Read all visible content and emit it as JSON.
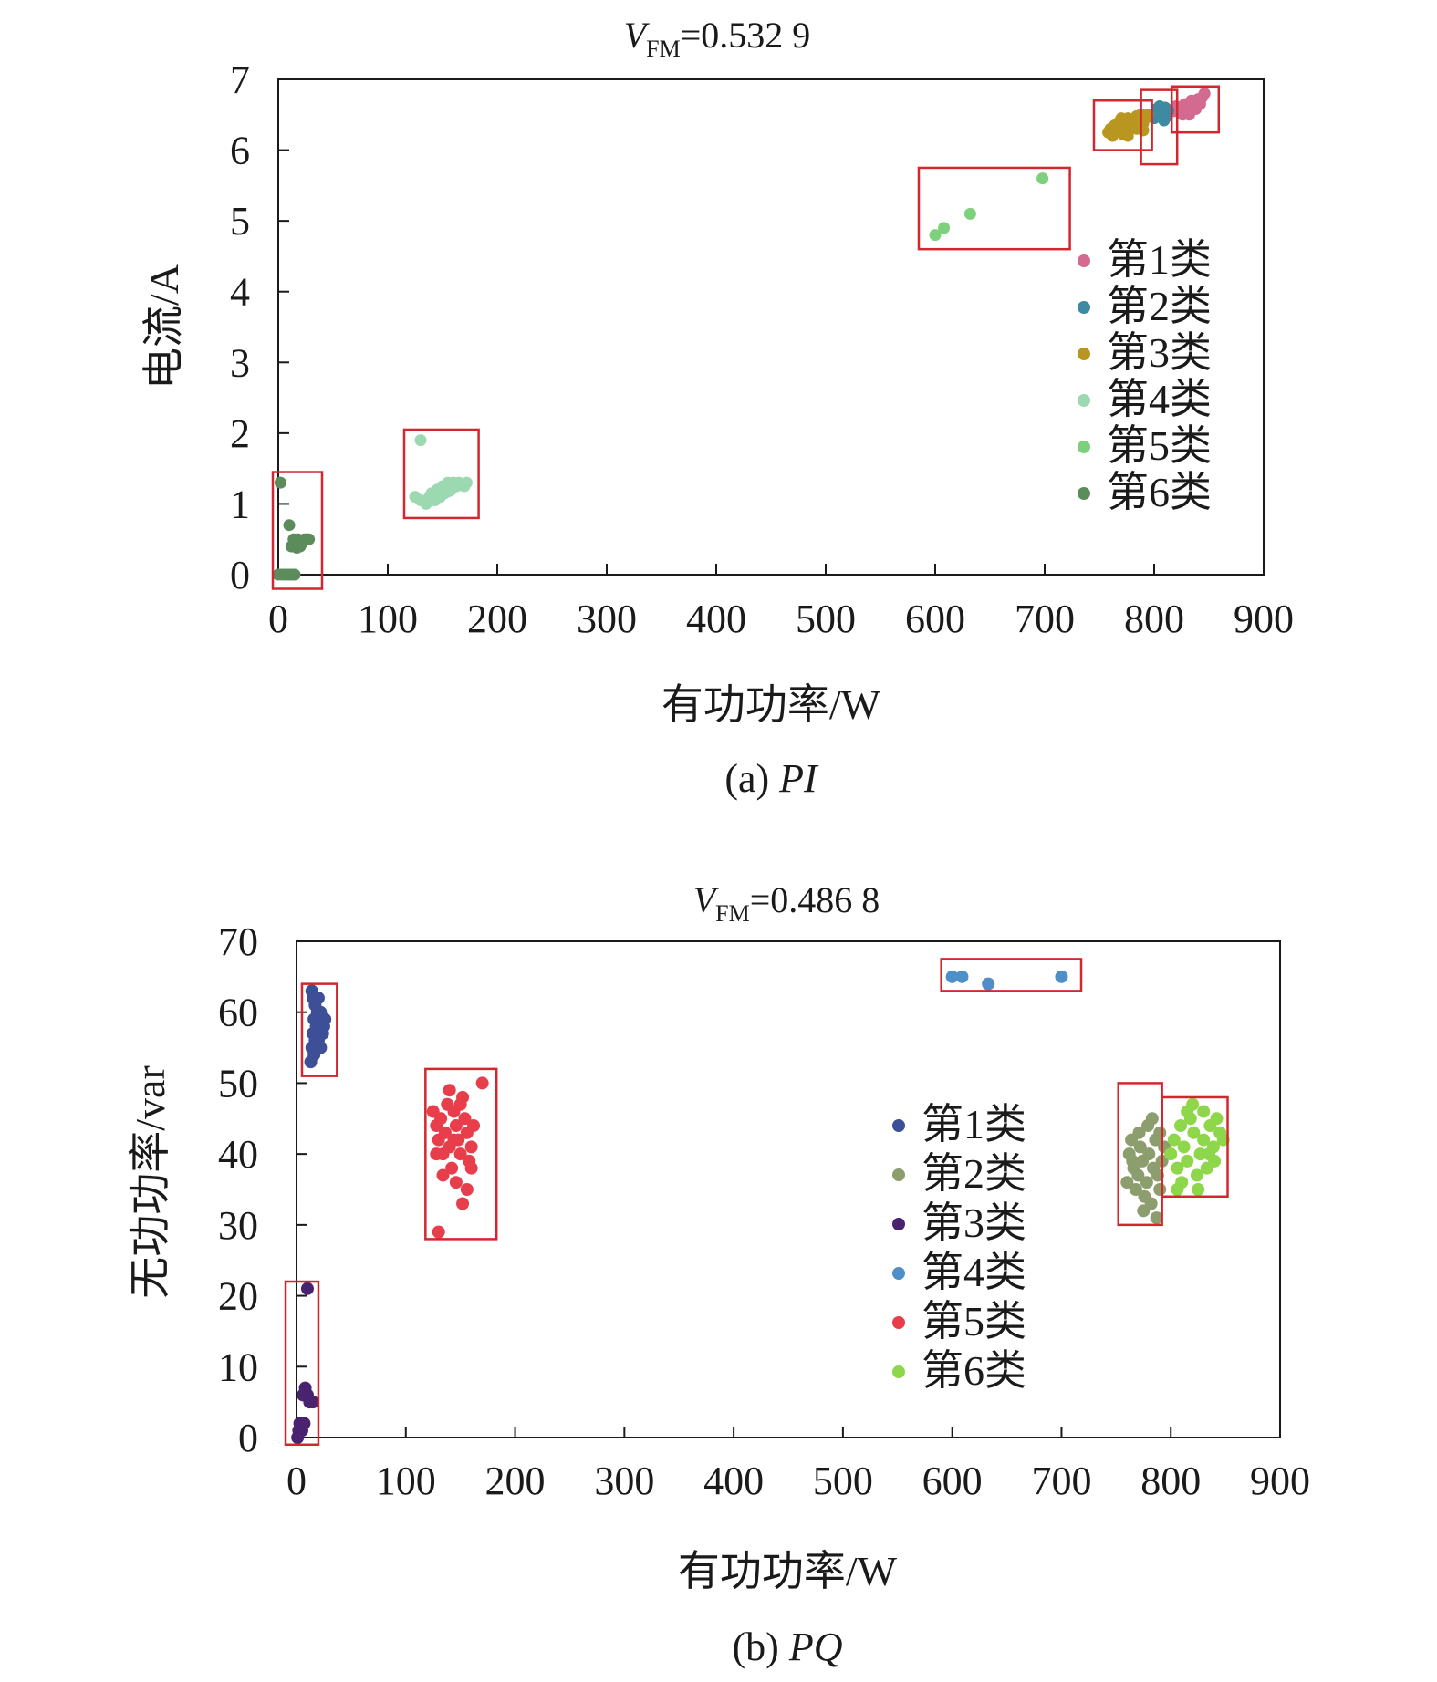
{
  "chart_data": [
    {
      "type": "scatter",
      "title_prefix": "V",
      "title_sub": "FM",
      "title_value": "=0.532 9",
      "xlabel": "有功功率/W",
      "ylabel": "电流/A",
      "caption_prefix": "(a) ",
      "caption_italic": "PI",
      "xlim": [
        0,
        900
      ],
      "ylim": [
        0,
        7
      ],
      "xticks": [
        "0",
        "100",
        "200",
        "300",
        "400",
        "500",
        "600",
        "700",
        "800",
        "900"
      ],
      "yticks": [
        "0",
        "1",
        "2",
        "3",
        "4",
        "5",
        "6",
        "7"
      ],
      "legend_position": "right-middle",
      "series": [
        {
          "name": "第1类",
          "color": "#d36a8f",
          "points": [
            [
              818,
              6.55
            ],
            [
              822,
              6.6
            ],
            [
              826,
              6.58
            ],
            [
              828,
              6.65
            ],
            [
              830,
              6.55
            ],
            [
              832,
              6.62
            ],
            [
              834,
              6.7
            ],
            [
              836,
              6.6
            ],
            [
              838,
              6.68
            ],
            [
              840,
              6.72
            ],
            [
              842,
              6.65
            ],
            [
              844,
              6.75
            ],
            [
              846,
              6.8
            ],
            [
              826,
              6.5
            ],
            [
              832,
              6.5
            ],
            [
              838,
              6.58
            ],
            [
              820,
              6.62
            ],
            [
              842,
              6.7
            ]
          ]
        },
        {
          "name": "第2类",
          "color": "#3e8aa3",
          "points": [
            [
              800,
              6.45
            ],
            [
              803,
              6.5
            ],
            [
              806,
              6.55
            ],
            [
              808,
              6.48
            ],
            [
              810,
              6.6
            ],
            [
              812,
              6.52
            ],
            [
              805,
              6.62
            ],
            [
              809,
              6.42
            ],
            [
              813,
              6.56
            ],
            [
              802,
              6.58
            ],
            [
              811,
              6.47
            ],
            [
              807,
              6.53
            ]
          ]
        },
        {
          "name": "第3类",
          "color": "#b8961f",
          "points": [
            [
              758,
              6.25
            ],
            [
              760,
              6.3
            ],
            [
              762,
              6.2
            ],
            [
              764,
              6.35
            ],
            [
              766,
              6.28
            ],
            [
              768,
              6.4
            ],
            [
              770,
              6.3
            ],
            [
              772,
              6.22
            ],
            [
              774,
              6.38
            ],
            [
              776,
              6.45
            ],
            [
              778,
              6.3
            ],
            [
              780,
              6.4
            ],
            [
              782,
              6.35
            ],
            [
              784,
              6.48
            ],
            [
              786,
              6.42
            ],
            [
              788,
              6.5
            ],
            [
              790,
              6.38
            ],
            [
              792,
              6.45
            ],
            [
              794,
              6.5
            ],
            [
              776,
              6.2
            ],
            [
              784,
              6.3
            ],
            [
              770,
              6.45
            ],
            [
              790,
              6.28
            ]
          ]
        },
        {
          "name": "第4类",
          "color": "#9cd9b0",
          "points": [
            [
              130,
              1.9
            ],
            [
              125,
              1.1
            ],
            [
              130,
              1.05
            ],
            [
              135,
              1.0
            ],
            [
              138,
              1.1
            ],
            [
              140,
              1.15
            ],
            [
              143,
              1.05
            ],
            [
              145,
              1.2
            ],
            [
              148,
              1.1
            ],
            [
              150,
              1.25
            ],
            [
              152,
              1.15
            ],
            [
              155,
              1.3
            ],
            [
              158,
              1.2
            ],
            [
              160,
              1.3
            ],
            [
              163,
              1.25
            ],
            [
              165,
              1.3
            ],
            [
              170,
              1.25
            ],
            [
              172,
              1.3
            ],
            [
              142,
              1.08
            ],
            [
              156,
              1.18
            ]
          ]
        },
        {
          "name": "第5类",
          "color": "#7dd17d",
          "points": [
            [
              600,
              4.8
            ],
            [
              608,
              4.9
            ],
            [
              632,
              5.1
            ],
            [
              698,
              5.6
            ]
          ]
        },
        {
          "name": "第6类",
          "color": "#5c8c5c",
          "points": [
            [
              2,
              1.3
            ],
            [
              0,
              0
            ],
            [
              3,
              0
            ],
            [
              5,
              0
            ],
            [
              7,
              0
            ],
            [
              9,
              0
            ],
            [
              11,
              0
            ],
            [
              13,
              0
            ],
            [
              15,
              0
            ],
            [
              10,
              0.7
            ],
            [
              12,
              0.4
            ],
            [
              14,
              0.5
            ],
            [
              16,
              0.45
            ],
            [
              18,
              0.5
            ],
            [
              20,
              0.4
            ],
            [
              22,
              0.45
            ],
            [
              24,
              0.5
            ],
            [
              26,
              0.5
            ],
            [
              28,
              0.5
            ],
            [
              17,
              0.38
            ],
            [
              21,
              0.48
            ]
          ]
        }
      ],
      "highlight_boxes_data": [
        {
          "x": [
            -5,
            40
          ],
          "y": [
            -0.2,
            1.45
          ]
        },
        {
          "x": [
            115,
            183
          ],
          "y": [
            0.8,
            2.05
          ]
        },
        {
          "x": [
            585,
            723
          ],
          "y": [
            4.6,
            5.75
          ]
        },
        {
          "x": [
            745,
            798
          ],
          "y": [
            6.0,
            6.7
          ]
        },
        {
          "x": [
            788,
            821
          ],
          "y": [
            5.8,
            6.85
          ]
        },
        {
          "x": [
            816,
            859
          ],
          "y": [
            6.25,
            6.9
          ]
        }
      ]
    },
    {
      "type": "scatter",
      "title_prefix": "V",
      "title_sub": "FM",
      "title_value": "=0.486 8",
      "xlabel": "有功功率/W",
      "ylabel": "无功功率/var",
      "caption_prefix": "(b) ",
      "caption_italic": "PQ",
      "xlim": [
        0,
        900
      ],
      "ylim": [
        0,
        70
      ],
      "xticks": [
        "0",
        "100",
        "200",
        "300",
        "400",
        "500",
        "600",
        "700",
        "800",
        "900"
      ],
      "yticks": [
        "0",
        "10",
        "20",
        "30",
        "40",
        "50",
        "60",
        "70"
      ],
      "legend_position": "right-middle",
      "series": [
        {
          "name": "第1类",
          "color": "#3d4f96",
          "points": [
            [
              13,
              53
            ],
            [
              14,
              55
            ],
            [
              15,
              57
            ],
            [
              16,
              59
            ],
            [
              17,
              61
            ],
            [
              15,
              62
            ],
            [
              14,
              63
            ],
            [
              18,
              58
            ],
            [
              20,
              56
            ],
            [
              22,
              55
            ],
            [
              24,
              57
            ],
            [
              26,
              59
            ],
            [
              25,
              58
            ],
            [
              23,
              57
            ],
            [
              19,
              60
            ],
            [
              21,
              58
            ],
            [
              17,
              56
            ],
            [
              16,
              54
            ],
            [
              20,
              62
            ],
            [
              22,
              60
            ]
          ]
        },
        {
          "name": "第2类",
          "color": "#8c9e6e",
          "points": [
            [
              760,
              36
            ],
            [
              762,
              40
            ],
            [
              764,
              42
            ],
            [
              766,
              38
            ],
            [
              768,
              35
            ],
            [
              770,
              37
            ],
            [
              772,
              41
            ],
            [
              774,
              39
            ],
            [
              776,
              34
            ],
            [
              778,
              36
            ],
            [
              780,
              40
            ],
            [
              782,
              33
            ],
            [
              784,
              38
            ],
            [
              786,
              42
            ],
            [
              788,
              37
            ],
            [
              790,
              35
            ],
            [
              792,
              39
            ],
            [
              794,
              41
            ],
            [
              783,
              45
            ],
            [
              779,
              44
            ],
            [
              775,
              32
            ],
            [
              771,
              43
            ],
            [
              787,
              31
            ],
            [
              765,
              39
            ],
            [
              790,
              43
            ]
          ]
        },
        {
          "name": "第3类",
          "color": "#4a2370",
          "points": [
            [
              1,
              0
            ],
            [
              2,
              1
            ],
            [
              3,
              2
            ],
            [
              5,
              1
            ],
            [
              7,
              2
            ],
            [
              6,
              6
            ],
            [
              8,
              7
            ],
            [
              10,
              6
            ],
            [
              12,
              5
            ],
            [
              15,
              5
            ],
            [
              10,
              21
            ]
          ]
        },
        {
          "name": "第4类",
          "color": "#4f8fc7",
          "points": [
            [
              600,
              65
            ],
            [
              609,
              65
            ],
            [
              633,
              64
            ],
            [
              700,
              65
            ]
          ]
        },
        {
          "name": "第5类",
          "color": "#e83d4a",
          "points": [
            [
              170,
              50
            ],
            [
              130,
              29
            ],
            [
              152,
              33
            ],
            [
              125,
              46
            ],
            [
              128,
              44
            ],
            [
              130,
              42
            ],
            [
              132,
              45
            ],
            [
              134,
              40
            ],
            [
              136,
              43
            ],
            [
              138,
              47
            ],
            [
              140,
              41
            ],
            [
              142,
              38
            ],
            [
              144,
              46
            ],
            [
              146,
              44
            ],
            [
              148,
              42
            ],
            [
              150,
              40
            ],
            [
              152,
              48
            ],
            [
              154,
              45
            ],
            [
              156,
              43
            ],
            [
              158,
              39
            ],
            [
              160,
              41
            ],
            [
              162,
              44
            ],
            [
              134,
              37
            ],
            [
              146,
              36
            ],
            [
              156,
              35
            ],
            [
              140,
              49
            ],
            [
              150,
              47
            ],
            [
              160,
              38
            ],
            [
              128,
              40
            ],
            [
              144,
              42
            ]
          ]
        },
        {
          "name": "第6类",
          "color": "#8ed64a",
          "points": [
            [
              800,
              40
            ],
            [
              803,
              42
            ],
            [
              806,
              38
            ],
            [
              809,
              44
            ],
            [
              812,
              41
            ],
            [
              815,
              39
            ],
            [
              818,
              45
            ],
            [
              821,
              43
            ],
            [
              824,
              37
            ],
            [
              827,
              40
            ],
            [
              830,
              42
            ],
            [
              833,
              38
            ],
            [
              836,
              44
            ],
            [
              839,
              41
            ],
            [
              842,
              45
            ],
            [
              845,
              43
            ],
            [
              848,
              42
            ],
            [
              810,
              36
            ],
            [
              820,
              47
            ],
            [
              830,
              46
            ],
            [
              806,
              35
            ],
            [
              825,
              35
            ],
            [
              840,
              39
            ],
            [
              815,
              46
            ],
            [
              835,
              40
            ]
          ]
        }
      ],
      "highlight_boxes_data": [
        {
          "x": [
            5,
            37
          ],
          "y": [
            51,
            64
          ]
        },
        {
          "x": [
            118,
            183
          ],
          "y": [
            28,
            52
          ]
        },
        {
          "x": [
            -10,
            20
          ],
          "y": [
            -1,
            22
          ]
        },
        {
          "x": [
            590,
            718
          ],
          "y": [
            63,
            67.5
          ]
        },
        {
          "x": [
            752,
            792
          ],
          "y": [
            30,
            50
          ]
        },
        {
          "x": [
            792,
            852
          ],
          "y": [
            34,
            48
          ]
        }
      ]
    }
  ]
}
